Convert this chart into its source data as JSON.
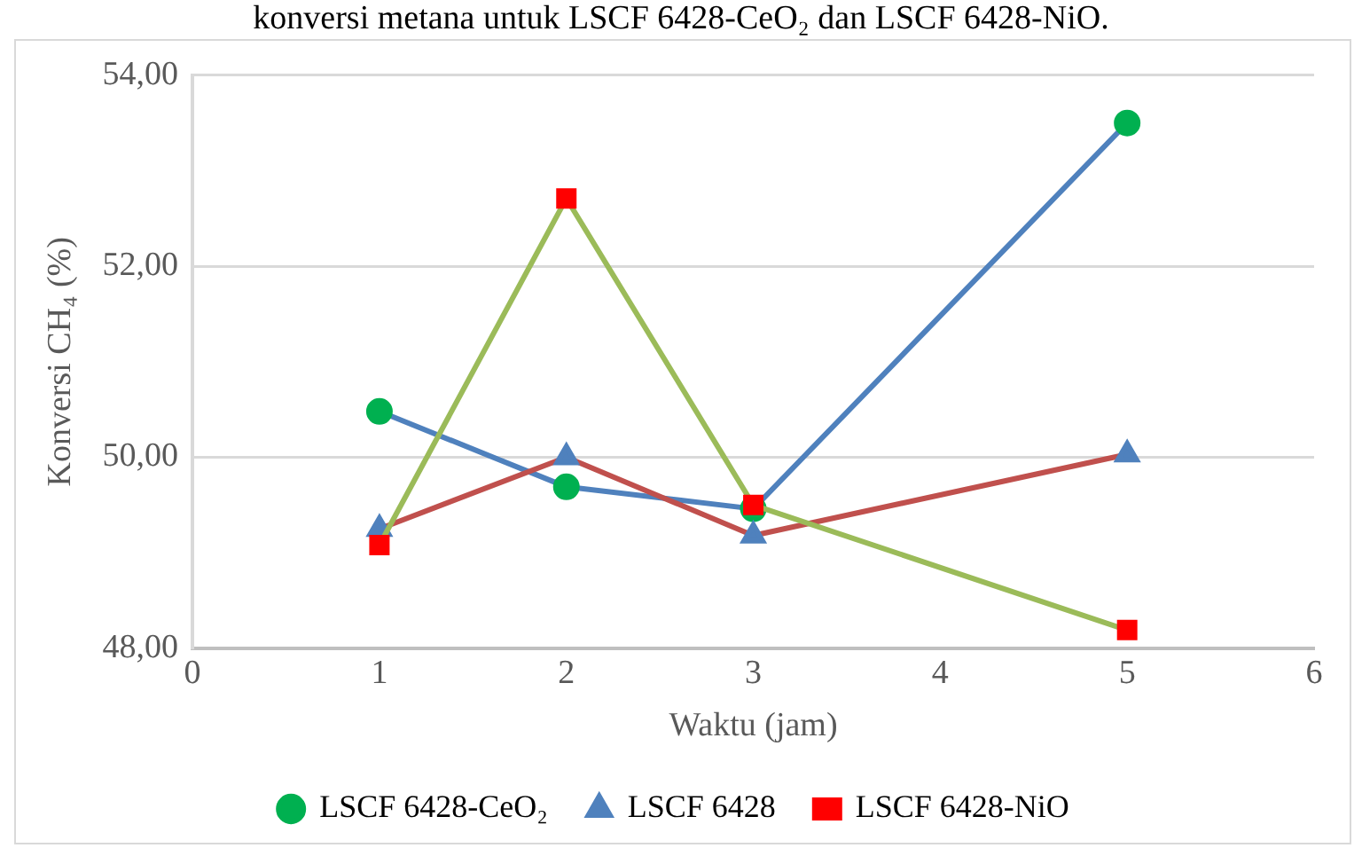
{
  "chart_data": {
    "type": "line",
    "annotations": [
      "konversi metana untuk LSCF 6428-CeO₂ dan LSCF 6428-NiO."
    ],
    "xlabel": "Waktu (jam)",
    "ylabel": "Konversi CH₄ (%)",
    "xlim": [
      0,
      6
    ],
    "xticks": [
      0,
      1,
      2,
      3,
      4,
      5,
      6
    ],
    "ylim": [
      48,
      54
    ],
    "yticks": [
      {
        "value": 48,
        "label": "48,00"
      },
      {
        "value": 50,
        "label": "50,00"
      },
      {
        "value": 52,
        "label": "52,00"
      },
      {
        "value": 54,
        "label": "54,00"
      }
    ],
    "grid": "y",
    "legend": "bottom",
    "series": [
      {
        "name": "LSCF 6428-CeO₂",
        "color": "#4f81bd",
        "colors": [
          "#00b050",
          "#00b050",
          "#00b050",
          "#00b050"
        ],
        "marker": "circle",
        "x": [
          1,
          2,
          3,
          5
        ],
        "values": [
          50.48,
          49.69,
          49.46,
          53.5
        ]
      },
      {
        "name": "LSCF 6428",
        "color": "#c0504d",
        "colors": [
          "#4f81bd",
          "#4f81bd",
          "#4f81bd",
          "#4f81bd"
        ],
        "marker": "triangle",
        "x": [
          1,
          2,
          3,
          5
        ],
        "values": [
          49.25,
          50.0,
          49.18,
          50.03
        ]
      },
      {
        "name": "LSCF 6428-NiO",
        "color": "#9bbb59",
        "colors": [
          "#ff0000",
          "#ff0000",
          "#ff0000",
          "#ff0000"
        ],
        "marker": "square",
        "x": [
          1,
          2,
          3,
          5
        ],
        "values": [
          49.08,
          52.71,
          49.5,
          48.19
        ]
      }
    ]
  }
}
